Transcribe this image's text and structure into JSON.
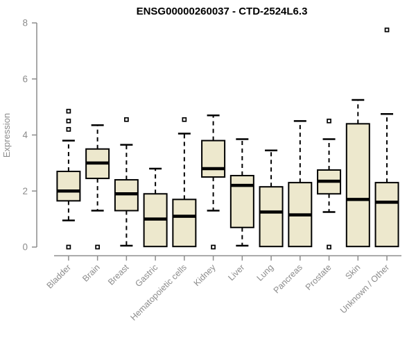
{
  "colors": {
    "box_fill": "#EDE8CD",
    "box_border": "#000000",
    "median": "#000000",
    "whisker": "#000000",
    "outlier_fill": "#ffffff",
    "axis": "#8C8C8C",
    "title": "#000000",
    "background": "#ffffff"
  },
  "chart_data": {
    "type": "boxplot",
    "title": "ENSG00000260037 - CTD-2524L6.3",
    "xlabel": "",
    "ylabel": "Expression",
    "ylim": [
      0,
      8
    ],
    "yticks": [
      0,
      2,
      4,
      6,
      8
    ],
    "grid": false,
    "legend": false,
    "categories": [
      "Bladder",
      "Brain",
      "Breast",
      "Gastric",
      "Hematopoietic cells",
      "Kidney",
      "Liver",
      "Lung",
      "Pancreas",
      "Prostate",
      "Skin",
      "Unknown / Other"
    ],
    "boxes": [
      {
        "category": "Bladder",
        "whisker_low": 0.95,
        "q1": 1.65,
        "median": 2.0,
        "q3": 2.7,
        "whisker_high": 3.8,
        "outliers": [
          4.85,
          4.5,
          4.2,
          0
        ]
      },
      {
        "category": "Brain",
        "whisker_low": 1.3,
        "q1": 2.45,
        "median": 3.0,
        "q3": 3.5,
        "whisker_high": 4.35,
        "outliers": [
          0
        ]
      },
      {
        "category": "Breast",
        "whisker_low": 0.05,
        "q1": 1.3,
        "median": 1.9,
        "q3": 2.4,
        "whisker_high": 3.65,
        "outliers": [
          4.55
        ]
      },
      {
        "category": "Gastric",
        "whisker_low": 0.02,
        "q1": 0.02,
        "median": 1.0,
        "q3": 1.9,
        "whisker_high": 2.8,
        "outliers": []
      },
      {
        "category": "Hematopoietic cells",
        "whisker_low": 0.02,
        "q1": 0.02,
        "median": 1.1,
        "q3": 1.7,
        "whisker_high": 4.05,
        "outliers": [
          4.55
        ]
      },
      {
        "category": "Kidney",
        "whisker_low": 1.3,
        "q1": 2.5,
        "median": 2.8,
        "q3": 3.8,
        "whisker_high": 4.7,
        "outliers": [
          0
        ]
      },
      {
        "category": "Liver",
        "whisker_low": 0.05,
        "q1": 0.7,
        "median": 2.2,
        "q3": 2.55,
        "whisker_high": 3.85,
        "outliers": []
      },
      {
        "category": "Lung",
        "whisker_low": 0.02,
        "q1": 0.02,
        "median": 1.25,
        "q3": 2.15,
        "whisker_high": 3.45,
        "outliers": []
      },
      {
        "category": "Pancreas",
        "whisker_low": 0.02,
        "q1": 0.02,
        "median": 1.15,
        "q3": 2.3,
        "whisker_high": 4.5,
        "outliers": []
      },
      {
        "category": "Prostate",
        "whisker_low": 1.25,
        "q1": 1.9,
        "median": 2.35,
        "q3": 2.75,
        "whisker_high": 3.85,
        "outliers": [
          4.5,
          0
        ]
      },
      {
        "category": "Skin",
        "whisker_low": 0.02,
        "q1": 0.02,
        "median": 1.7,
        "q3": 4.4,
        "whisker_high": 5.25,
        "outliers": []
      },
      {
        "category": "Unknown / Other",
        "whisker_low": 0.02,
        "q1": 0.02,
        "median": 1.6,
        "q3": 2.3,
        "whisker_high": 4.75,
        "outliers": [
          7.75
        ]
      }
    ]
  }
}
